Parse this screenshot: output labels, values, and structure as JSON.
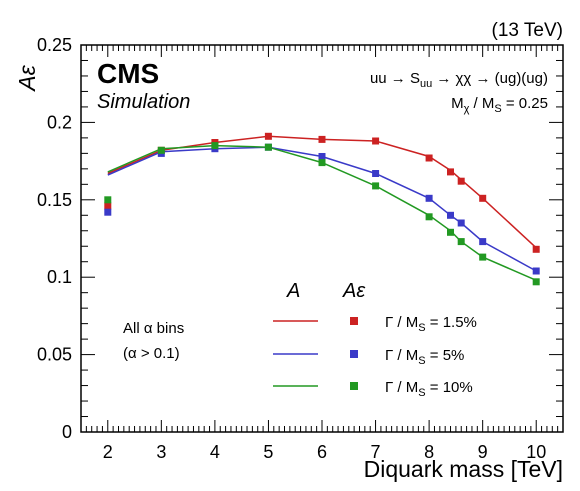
{
  "chart_data": {
    "type": "line",
    "ylabel": "Aε",
    "xlabel": "Diquark mass [TeV]",
    "energy_label": "(13 TeV)",
    "experiment": "CMS",
    "subtitle": "Simulation",
    "process": {
      "main": "uu → S",
      "main_sub": "uu",
      "rest": " → χχ → (ug)(ug)",
      "ratio_pre": "M",
      "ratio_sub1": "χ",
      "ratio_mid": " / M",
      "ratio_sub2": "S",
      "ratio_post": " = 0.25"
    },
    "annotation": [
      "All α bins",
      "(α > 0.1)"
    ],
    "legend": {
      "header_line": "A",
      "header_marker": "Aε",
      "entries": [
        {
          "pre": "Γ / M",
          "sub": "S",
          "post": " = 1.5%"
        },
        {
          "pre": "Γ / M",
          "sub": "S",
          "post": " = 5%"
        },
        {
          "pre": "Γ / M",
          "sub": "S",
          "post": " = 10%"
        }
      ]
    },
    "xlim": [
      1.5,
      10.5
    ],
    "ylim": [
      0,
      0.25
    ],
    "x_ticks": [
      2,
      3,
      4,
      5,
      6,
      7,
      8,
      9,
      10
    ],
    "y_ticks": [
      0,
      0.05,
      0.1,
      0.15,
      0.2,
      0.25
    ],
    "y_tick_labels": [
      "0",
      "0.05",
      "0.1",
      "0.15",
      "0.2",
      "0.25"
    ],
    "series": [
      {
        "name": "Γ / MS = 1.5%",
        "color": "#cc2222",
        "line": {
          "x": [
            2,
            3,
            4,
            5,
            6,
            7,
            8,
            8.4,
            8.6,
            9,
            10
          ],
          "y": [
            0.167,
            0.182,
            0.187,
            0.191,
            0.189,
            0.188,
            0.178,
            0.169,
            0.163,
            0.151,
            0.119
          ]
        },
        "markers": {
          "x": [
            2,
            3,
            4,
            5,
            6,
            7,
            8,
            8.4,
            8.6,
            9,
            10
          ],
          "y": [
            0.146,
            0.182,
            0.187,
            0.191,
            0.189,
            0.188,
            0.177,
            0.168,
            0.162,
            0.151,
            0.118
          ]
        }
      },
      {
        "name": "Γ / MS = 5%",
        "color": "#3a3ac8",
        "line": {
          "x": [
            2,
            3,
            4,
            5,
            6,
            7,
            8,
            8.4,
            8.6,
            9,
            10
          ],
          "y": [
            0.166,
            0.181,
            0.183,
            0.184,
            0.178,
            0.167,
            0.151,
            0.14,
            0.135,
            0.123,
            0.104
          ]
        },
        "markers": {
          "x": [
            2,
            3,
            4,
            5,
            6,
            7,
            8,
            8.4,
            8.6,
            9,
            10
          ],
          "y": [
            0.142,
            0.18,
            0.183,
            0.184,
            0.178,
            0.167,
            0.151,
            0.14,
            0.135,
            0.123,
            0.104
          ]
        }
      },
      {
        "name": "Γ / MS = 10%",
        "color": "#229922",
        "line": {
          "x": [
            2,
            3,
            4,
            5,
            6,
            7,
            8,
            8.4,
            8.6,
            9,
            10
          ],
          "y": [
            0.168,
            0.183,
            0.185,
            0.184,
            0.174,
            0.159,
            0.14,
            0.13,
            0.123,
            0.113,
            0.098
          ]
        },
        "markers": {
          "x": [
            2,
            3,
            4,
            5,
            6,
            7,
            8,
            8.4,
            8.6,
            9,
            10
          ],
          "y": [
            0.15,
            0.182,
            0.185,
            0.184,
            0.174,
            0.159,
            0.139,
            0.129,
            0.123,
            0.113,
            0.097
          ]
        }
      }
    ]
  }
}
